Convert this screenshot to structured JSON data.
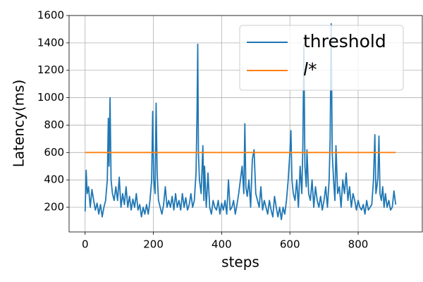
{
  "chart_data": {
    "type": "line",
    "xlabel": "steps",
    "ylabel": "Latency(ms)",
    "xlim": [
      -47,
      988
    ],
    "ylim": [
      20,
      1600
    ],
    "xticks": [
      0,
      200,
      400,
      600,
      800
    ],
    "yticks": [
      200,
      400,
      600,
      800,
      1000,
      1200,
      1400,
      1600
    ],
    "grid": true,
    "legend": "upper right",
    "series": [
      {
        "name": "threshold",
        "color": "#1f77b4",
        "x": [
          0,
          3,
          6,
          10,
          15,
          20,
          25,
          30,
          35,
          40,
          45,
          50,
          55,
          60,
          65,
          68,
          70,
          73,
          76,
          80,
          85,
          90,
          95,
          100,
          105,
          110,
          115,
          120,
          125,
          130,
          135,
          140,
          145,
          150,
          155,
          160,
          165,
          170,
          175,
          180,
          185,
          190,
          195,
          198,
          201,
          205,
          208,
          211,
          215,
          220,
          225,
          230,
          235,
          240,
          245,
          250,
          255,
          260,
          265,
          270,
          275,
          280,
          285,
          290,
          295,
          300,
          305,
          310,
          315,
          320,
          325,
          328,
          330,
          332,
          335,
          340,
          345,
          348,
          350,
          355,
          360,
          365,
          370,
          375,
          380,
          385,
          390,
          395,
          400,
          405,
          410,
          415,
          420,
          425,
          430,
          435,
          440,
          445,
          450,
          455,
          460,
          465,
          468,
          471,
          475,
          480,
          485,
          490,
          495,
          500,
          505,
          510,
          515,
          520,
          525,
          530,
          535,
          540,
          545,
          550,
          555,
          560,
          565,
          570,
          575,
          580,
          585,
          590,
          595,
          600,
          603,
          606,
          610,
          615,
          620,
          625,
          630,
          635,
          638,
          641,
          644,
          648,
          650,
          655,
          660,
          665,
          670,
          675,
          680,
          685,
          690,
          695,
          700,
          705,
          710,
          715,
          718,
          721,
          724,
          728,
          732,
          735,
          740,
          745,
          750,
          755,
          760,
          765,
          770,
          775,
          780,
          785,
          790,
          795,
          800,
          805,
          810,
          815,
          820,
          825,
          830,
          835,
          840,
          845,
          849,
          852,
          855,
          858,
          861,
          864,
          868,
          872,
          876,
          880,
          885,
          890,
          895,
          900,
          905,
          910
        ],
        "values": [
          170,
          470,
          300,
          350,
          200,
          330,
          250,
          180,
          230,
          150,
          220,
          130,
          200,
          250,
          400,
          850,
          500,
          1000,
          400,
          300,
          250,
          350,
          250,
          420,
          200,
          300,
          220,
          350,
          200,
          280,
          180,
          260,
          200,
          300,
          180,
          220,
          130,
          200,
          150,
          220,
          150,
          250,
          400,
          900,
          400,
          300,
          960,
          450,
          250,
          200,
          150,
          220,
          350,
          200,
          250,
          200,
          280,
          180,
          300,
          200,
          250,
          180,
          300,
          200,
          270,
          180,
          220,
          300,
          200,
          250,
          450,
          900,
          1390,
          600,
          400,
          300,
          650,
          250,
          500,
          200,
          450,
          200,
          150,
          250,
          200,
          180,
          250,
          150,
          230,
          180,
          250,
          150,
          400,
          180,
          200,
          250,
          150,
          220,
          300,
          400,
          500,
          300,
          810,
          350,
          280,
          400,
          200,
          550,
          620,
          300,
          250,
          200,
          350,
          180,
          250,
          200,
          150,
          250,
          180,
          130,
          280,
          200,
          130,
          200,
          110,
          200,
          150,
          250,
          400,
          600,
          760,
          400,
          300,
          250,
          400,
          200,
          500,
          300,
          650,
          1390,
          500,
          350,
          620,
          300,
          250,
          400,
          200,
          350,
          250,
          200,
          280,
          180,
          250,
          350,
          200,
          400,
          700,
          1540,
          600,
          400,
          250,
          650,
          300,
          350,
          200,
          400,
          300,
          450,
          250,
          350,
          200,
          300,
          250,
          180,
          250,
          200,
          180,
          220,
          150,
          250,
          180,
          200,
          220,
          400,
          730,
          300,
          350,
          420,
          720,
          300,
          250,
          350,
          200,
          300,
          200,
          250,
          180,
          200,
          320,
          220
        ]
      },
      {
        "name": "l*",
        "color": "#ff7f0e",
        "x": [
          0,
          910
        ],
        "values": [
          600,
          600
        ]
      }
    ]
  }
}
